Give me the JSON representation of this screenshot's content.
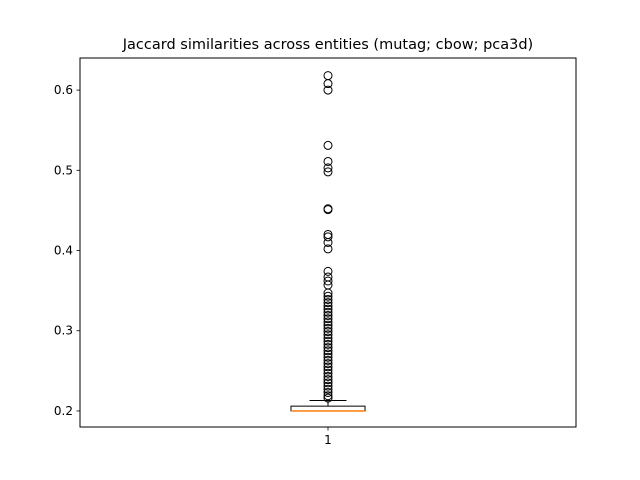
{
  "chart_data": {
    "type": "box",
    "title": "Jaccard similarities across entities (mutag; cbow; pca3d)",
    "xlabel": "",
    "ylabel": "",
    "categories": [
      "1"
    ],
    "ylim": [
      0.18,
      0.64
    ],
    "yticks": [
      0.2,
      0.3,
      0.4,
      0.5,
      0.6
    ],
    "ytick_labels": [
      "0.2",
      "0.3",
      "0.4",
      "0.5",
      "0.6"
    ],
    "grid": false,
    "boxes": [
      {
        "category": "1",
        "whisker_low": 0.2,
        "q1": 0.2,
        "median": 0.2,
        "q3": 0.206,
        "whisker_high": 0.213,
        "fliers": [
          0.618,
          0.608,
          0.6,
          0.531,
          0.511,
          0.503,
          0.498,
          0.452,
          0.451,
          0.42,
          0.417,
          0.41,
          0.402,
          0.374,
          0.367,
          0.362,
          0.357,
          0.347,
          0.343,
          0.339,
          0.335,
          0.331,
          0.327,
          0.323,
          0.319,
          0.315,
          0.311,
          0.307,
          0.303,
          0.299,
          0.295,
          0.291,
          0.287,
          0.283,
          0.279,
          0.275,
          0.271,
          0.267,
          0.263,
          0.259,
          0.255,
          0.251,
          0.247,
          0.243,
          0.239,
          0.235,
          0.231,
          0.227,
          0.223,
          0.219,
          0.216
        ]
      }
    ],
    "colors": {
      "box": "#000000",
      "median": "#ff7f0e",
      "flier": "#000000"
    }
  }
}
